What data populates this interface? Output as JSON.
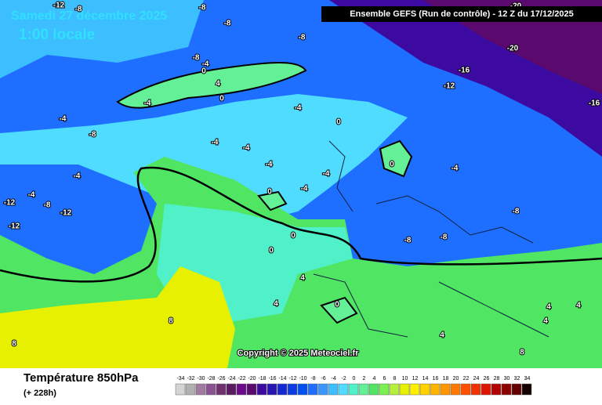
{
  "header": {
    "date": "Samedi 27 décembre 2025",
    "time": "1:00 locale",
    "run": "Ensemble GEFS  (Run de contrôle)  -  12 Z du 17/12/2025"
  },
  "map": {
    "contour_labels": [
      -8,
      -8,
      -12,
      -8,
      -8,
      -8,
      -4,
      0,
      4,
      -4,
      0,
      -4,
      0,
      -4,
      -8,
      -4,
      -4,
      -4,
      -4,
      0,
      -4,
      -4,
      -4,
      0,
      -4,
      -12,
      -8,
      -12,
      -8,
      -12,
      0,
      -8,
      -8,
      0,
      4,
      4,
      0,
      8,
      8,
      4,
      4,
      4,
      4,
      8,
      -20,
      -20,
      -16,
      -12,
      -16
    ],
    "copyright": "Copyright © 2025 Meteociel.fr"
  },
  "footer": {
    "title": "Température 850hPa",
    "lead": "(+ 228h)",
    "scale": {
      "ticks": [
        -34,
        -32,
        -30,
        -28,
        -26,
        -24,
        -22,
        -20,
        -18,
        -16,
        -14,
        -12,
        -10,
        -8,
        -6,
        -4,
        -2,
        0,
        2,
        4,
        6,
        8,
        10,
        12,
        14,
        16,
        18,
        20,
        22,
        24,
        26,
        28,
        30,
        32,
        34
      ],
      "colors": [
        "#d4d4d4",
        "#b0b0b0",
        "#a07aa0",
        "#8a5090",
        "#703070",
        "#5a1a62",
        "#6a0a8a",
        "#5a0a6e",
        "#3c0aa0",
        "#2814b4",
        "#1428d2",
        "#0a3ce6",
        "#0050f0",
        "#1e6eff",
        "#3c96ff",
        "#3cbeff",
        "#50dcff",
        "#50f0c8",
        "#64f096",
        "#50e664",
        "#7cf050",
        "#b4f03c",
        "#e6f000",
        "#fff000",
        "#ffd200",
        "#ffb400",
        "#ff9600",
        "#ff7800",
        "#ff5000",
        "#f03200",
        "#dc1400",
        "#b40000",
        "#8c0000",
        "#640000",
        "#140000"
      ]
    }
  }
}
